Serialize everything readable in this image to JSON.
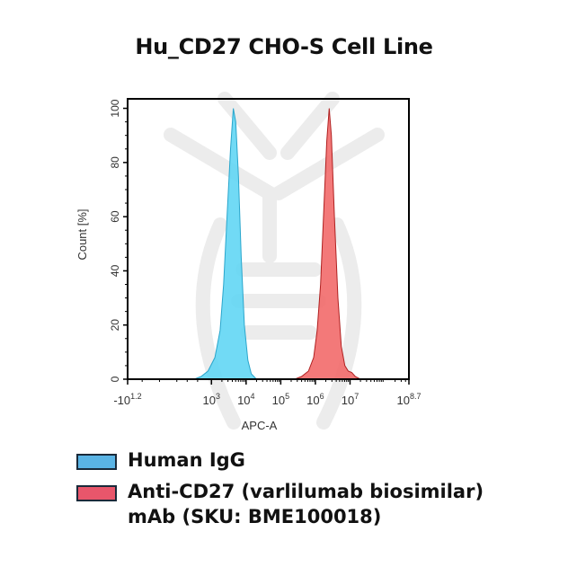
{
  "title": "Hu_CD27 CHO-S Cell Line",
  "chart_data": {
    "type": "area",
    "title": "Hu_CD27 CHO-S Cell Line",
    "xlabel": "APC-A",
    "ylabel": "Count [%]",
    "x_scale": "log10 (biexponential near zero)",
    "xlim_log10": [
      0.58,
      8.7
    ],
    "ylim": [
      0,
      103.5
    ],
    "x_ticks": [
      {
        "pos": 0.58,
        "label": "-10",
        "exp": "1.2"
      },
      {
        "pos": 3,
        "label": "10",
        "exp": "3"
      },
      {
        "pos": 4,
        "label": "10",
        "exp": "4"
      },
      {
        "pos": 5,
        "label": "10",
        "exp": "5"
      },
      {
        "pos": 6,
        "label": "10",
        "exp": "6"
      },
      {
        "pos": 7,
        "label": "10",
        "exp": "7"
      },
      {
        "pos": 8.7,
        "label": "10",
        "exp": "8.7"
      }
    ],
    "y_ticks": [
      0,
      20,
      40,
      60,
      80,
      100
    ],
    "series": [
      {
        "name": "Human IgG",
        "fill": "#62d6f4",
        "stroke": "#2aa6cc",
        "legend_color": "#5ab4e5",
        "x_log10": [
          2.5,
          2.7,
          2.9,
          3.1,
          3.25,
          3.35,
          3.45,
          3.55,
          3.63,
          3.7,
          3.78,
          3.86,
          3.95,
          4.05,
          4.15,
          4.3
        ],
        "y": [
          0,
          1,
          3,
          8,
          18,
          35,
          60,
          85,
          100,
          95,
          75,
          45,
          20,
          7,
          2,
          0
        ]
      },
      {
        "name": "Anti-CD27 (varlilumab biosimilar) mAb (SKU: BME100018)",
        "fill": "#f26a6a",
        "stroke": "#b02020",
        "legend_color": "#e8566b",
        "x_log10": [
          5.4,
          5.6,
          5.8,
          5.95,
          6.05,
          6.15,
          6.25,
          6.33,
          6.4,
          6.46,
          6.55,
          6.65,
          6.75,
          6.85,
          6.95,
          7.05,
          7.15,
          7.3
        ],
        "y": [
          0,
          1,
          3,
          8,
          18,
          35,
          65,
          88,
          100,
          90,
          60,
          30,
          12,
          5,
          3,
          2.5,
          1,
          0
        ]
      }
    ],
    "legend_position": "bottom"
  },
  "legend": [
    {
      "label": "Human IgG"
    },
    {
      "label": "Anti-CD27 (varlilumab biosimilar)",
      "label2": "mAb (SKU: BME100018)"
    }
  ]
}
